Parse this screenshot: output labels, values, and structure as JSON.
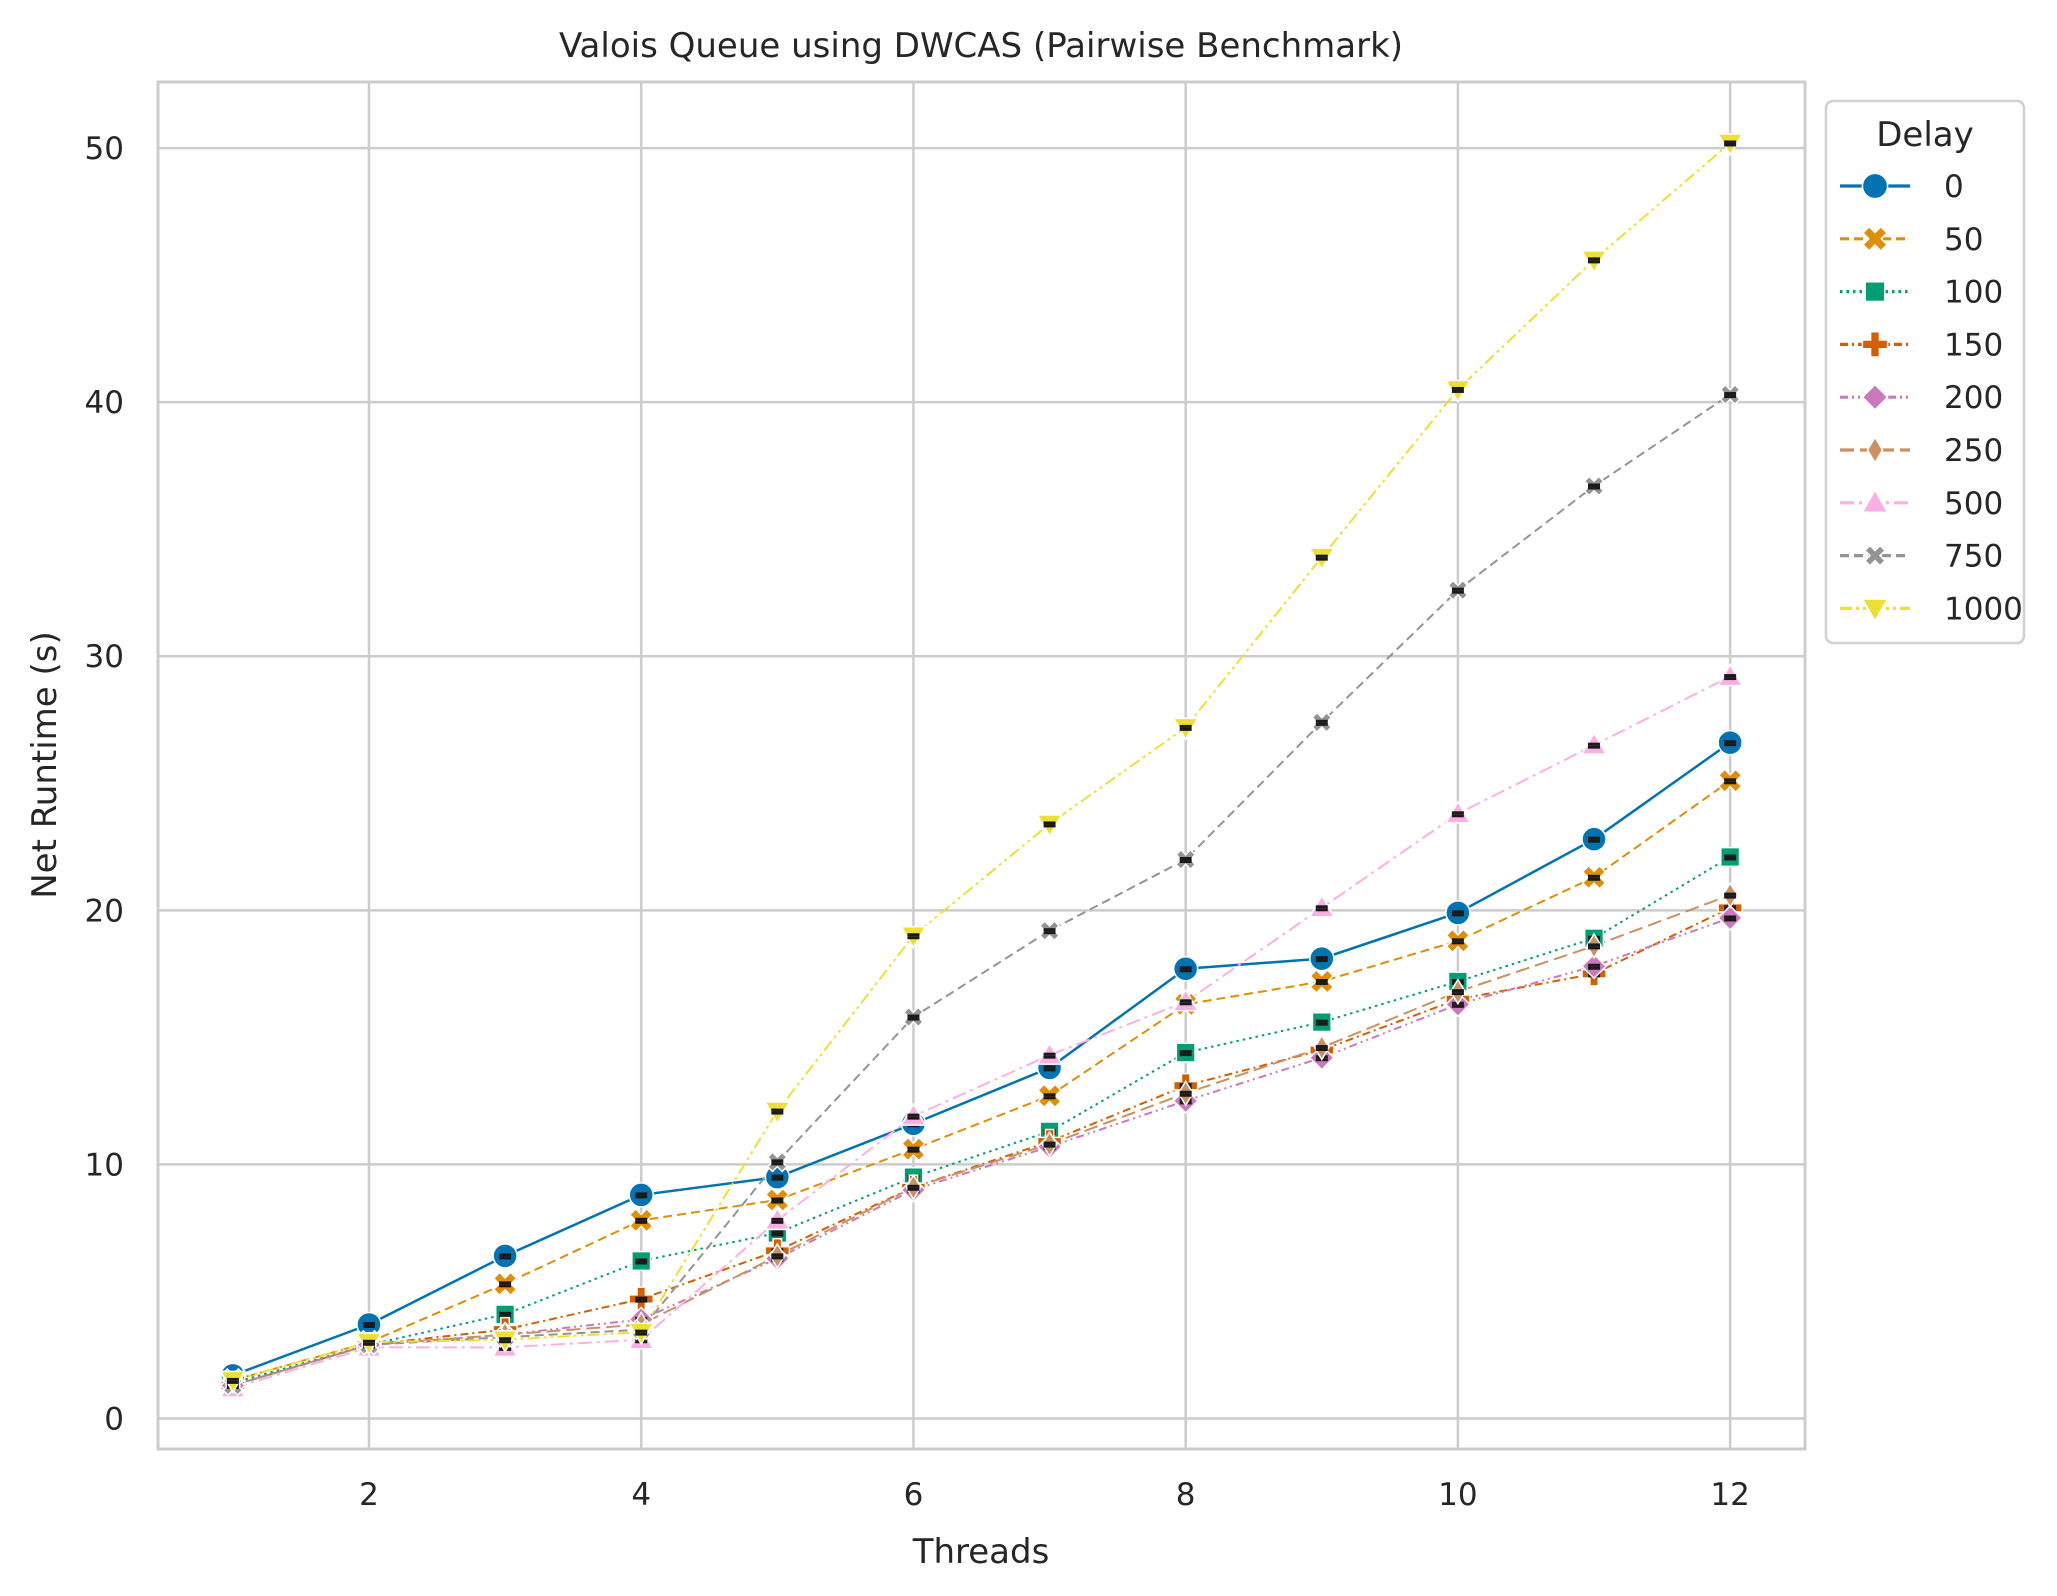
{
  "chart_data": {
    "type": "line",
    "title": "Valois Queue using DWCAS (Pairwise Benchmark)",
    "xlabel": "Threads",
    "ylabel": "Net Runtime (s)",
    "xlim": [
      0.45,
      12.55
    ],
    "ylim": [
      -1.2,
      52.6
    ],
    "xticks": [
      2,
      4,
      6,
      8,
      10,
      12
    ],
    "yticks": [
      0,
      10,
      20,
      30,
      40,
      50
    ],
    "xtick_labels": [
      "2",
      "4",
      "6",
      "8",
      "10",
      "12"
    ],
    "ytick_labels": [
      "0",
      "10",
      "20",
      "30",
      "40",
      "50"
    ],
    "grid": true,
    "legend": {
      "title": "Delay",
      "placement": "outside-right-top"
    },
    "x": [
      1,
      2,
      3,
      4,
      5,
      6,
      7,
      8,
      9,
      10,
      11,
      12
    ],
    "series": [
      {
        "name": "0",
        "color": "#0173b2",
        "marker": "circle",
        "dash": "solid",
        "values": [
          1.7,
          3.7,
          6.4,
          8.8,
          9.5,
          11.6,
          13.8,
          17.7,
          18.1,
          19.9,
          22.8,
          26.6
        ]
      },
      {
        "name": "50",
        "color": "#de8f05",
        "marker": "x-cross",
        "dash": "dashed",
        "values": [
          1.5,
          3.0,
          5.3,
          7.8,
          8.6,
          10.6,
          12.7,
          16.3,
          17.2,
          18.8,
          21.3,
          25.1
        ]
      },
      {
        "name": "100",
        "color": "#029e73",
        "marker": "square",
        "dash": "dotted",
        "values": [
          1.4,
          2.9,
          4.1,
          6.2,
          7.3,
          9.5,
          11.3,
          14.4,
          15.6,
          17.2,
          18.9,
          22.1
        ]
      },
      {
        "name": "150",
        "color": "#d55e00",
        "marker": "plus",
        "dash": "dashdot",
        "values": [
          1.3,
          2.9,
          3.5,
          4.7,
          6.6,
          9.1,
          10.9,
          13.1,
          14.5,
          16.5,
          17.5,
          20.1
        ]
      },
      {
        "name": "200",
        "color": "#cc78bc",
        "marker": "diamond",
        "dash": "dashdotdot",
        "values": [
          1.3,
          2.9,
          3.3,
          3.9,
          6.3,
          9.0,
          10.7,
          12.5,
          14.2,
          16.3,
          17.8,
          19.7
        ]
      },
      {
        "name": "250",
        "color": "#ca9161",
        "marker": "thin-diamond",
        "dash": "longdash",
        "values": [
          1.3,
          2.9,
          3.3,
          3.7,
          6.4,
          9.1,
          10.8,
          12.8,
          14.6,
          16.8,
          18.6,
          20.6
        ]
      },
      {
        "name": "500",
        "color": "#fbafe4",
        "marker": "triangle-up",
        "dash": "dashdot-long",
        "values": [
          1.2,
          2.8,
          2.8,
          3.1,
          7.8,
          11.9,
          14.3,
          16.4,
          20.1,
          23.8,
          26.5,
          29.2
        ]
      },
      {
        "name": "750",
        "color": "#949494",
        "marker": "x",
        "dash": "dashed",
        "values": [
          1.3,
          2.9,
          3.2,
          3.5,
          10.1,
          15.8,
          19.2,
          22.0,
          27.4,
          32.6,
          36.7,
          40.3
        ]
      },
      {
        "name": "1000",
        "color": "#ece133",
        "marker": "triangle-down",
        "dash": "dashdotdot-long",
        "values": [
          1.5,
          3.0,
          3.1,
          3.4,
          12.1,
          19.0,
          23.4,
          27.2,
          33.9,
          40.5,
          45.6,
          50.2
        ]
      }
    ]
  }
}
